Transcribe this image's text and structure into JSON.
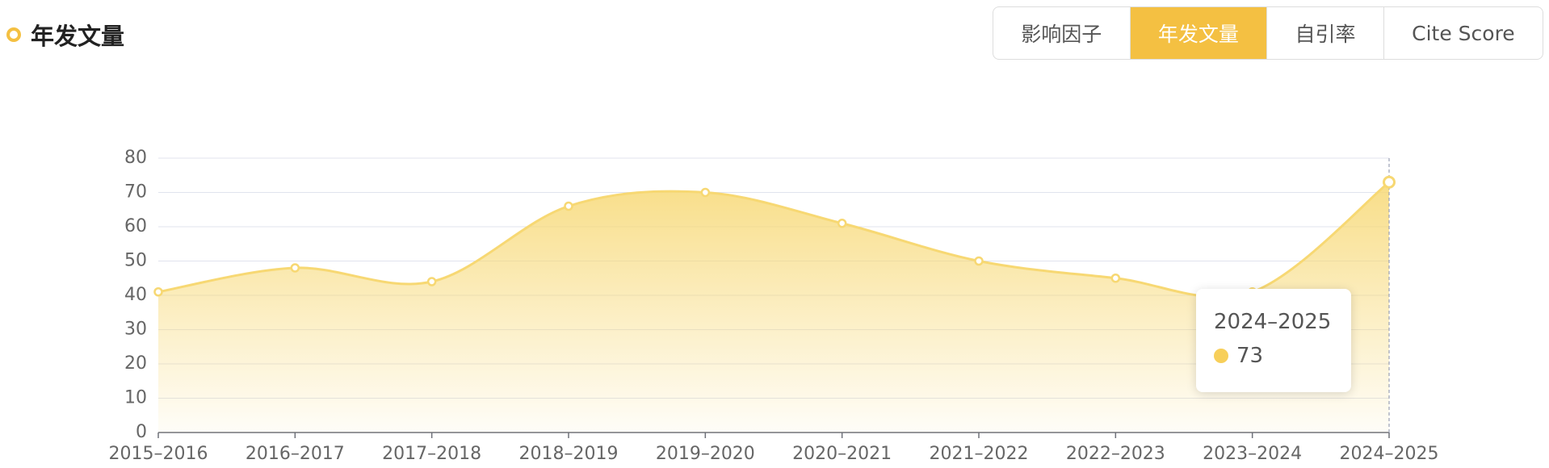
{
  "header": {
    "title": "年发文量",
    "tabs": [
      {
        "label": "影响因子",
        "active": false
      },
      {
        "label": "年发文量",
        "active": true
      },
      {
        "label": "自引率",
        "active": false
      },
      {
        "label": "Cite Score",
        "active": false
      }
    ]
  },
  "chart_data": {
    "type": "area",
    "categories": [
      "2015–2016",
      "2016–2017",
      "2017–2018",
      "2018–2019",
      "2019–2020",
      "2020–2021",
      "2021–2022",
      "2022–2023",
      "2023–2024",
      "2024–2025"
    ],
    "values": [
      41,
      48,
      44,
      66,
      70,
      61,
      50,
      45,
      41,
      73
    ],
    "color": "#f7d873",
    "ylim": [
      0,
      80
    ],
    "yticks": [
      0,
      10,
      20,
      30,
      40,
      50,
      60,
      70,
      80
    ],
    "grid": true
  }
}
